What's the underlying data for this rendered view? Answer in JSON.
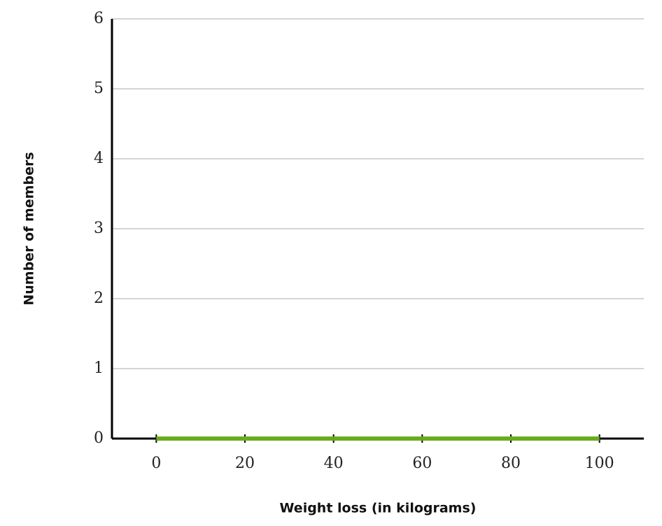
{
  "chart_data": {
    "type": "histogram",
    "x_label": "Weight loss (in kilograms)",
    "y_label": "Number of members",
    "bins": [
      0,
      20,
      40,
      60,
      80,
      100
    ],
    "values": [
      0,
      0,
      0,
      0,
      0
    ],
    "color": "#6aac1c",
    "xlim": [
      -10,
      110
    ],
    "xticks": [
      0,
      20,
      40,
      60,
      80,
      100
    ],
    "ylim": [
      0,
      6
    ],
    "yticks": [
      0,
      1,
      2,
      3,
      4,
      5,
      6
    ],
    "grid": true
  }
}
